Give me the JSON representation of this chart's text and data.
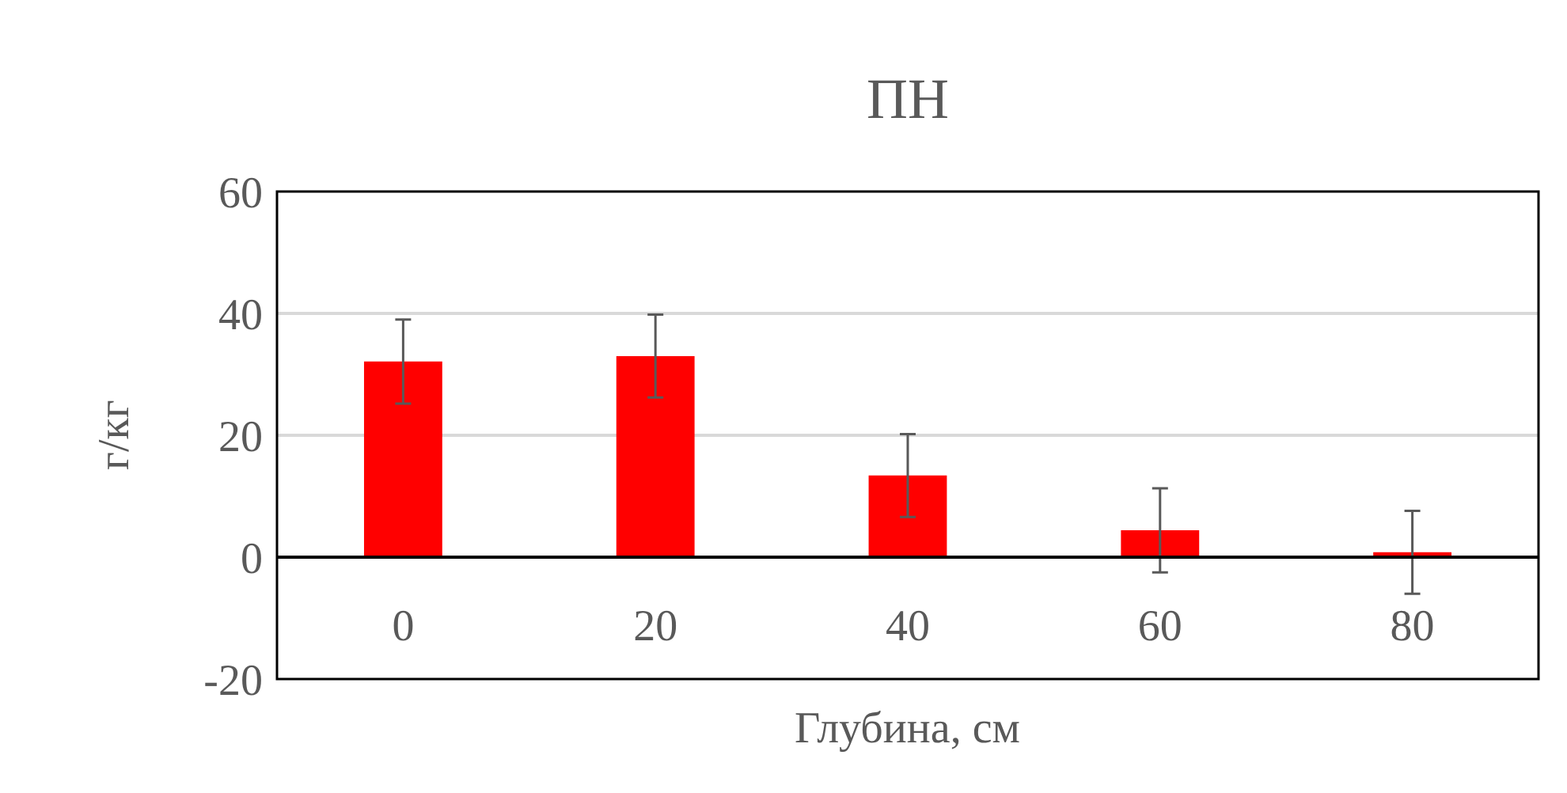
{
  "chart_data": {
    "type": "bar",
    "title": "ПН",
    "xlabel": "Глубина, см",
    "ylabel": "г/кг",
    "categories": [
      "0",
      "20",
      "40",
      "60",
      "80"
    ],
    "values": [
      32.1,
      33.0,
      13.4,
      4.4,
      0.8
    ],
    "errors": [
      6.9,
      6.8,
      6.8,
      6.9,
      6.8
    ],
    "color": "#ff0000",
    "ylim": [
      -20,
      60
    ],
    "yticks": [
      -20,
      0,
      20,
      40,
      60
    ],
    "grid": "y",
    "legend": false
  }
}
